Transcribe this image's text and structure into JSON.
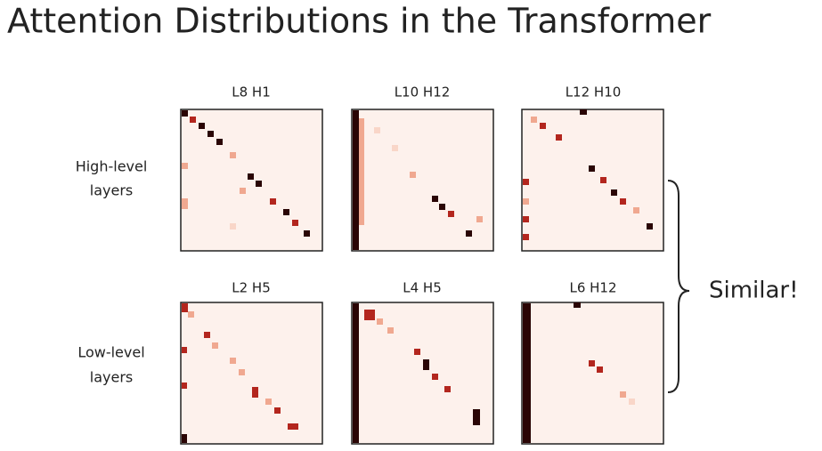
{
  "title": "Attention Distributions in the Transformer",
  "panels": [
    {
      "label": "L8 H1"
    },
    {
      "label": "L10 H12"
    },
    {
      "label": "L12 H10"
    },
    {
      "label": "L2 H5"
    },
    {
      "label": "L4 H5"
    },
    {
      "label": "L6 H12"
    }
  ],
  "row_labels": [
    [
      "High-level",
      "layers"
    ],
    [
      "Low-level",
      "layers"
    ]
  ],
  "annotation": "Similar!"
}
